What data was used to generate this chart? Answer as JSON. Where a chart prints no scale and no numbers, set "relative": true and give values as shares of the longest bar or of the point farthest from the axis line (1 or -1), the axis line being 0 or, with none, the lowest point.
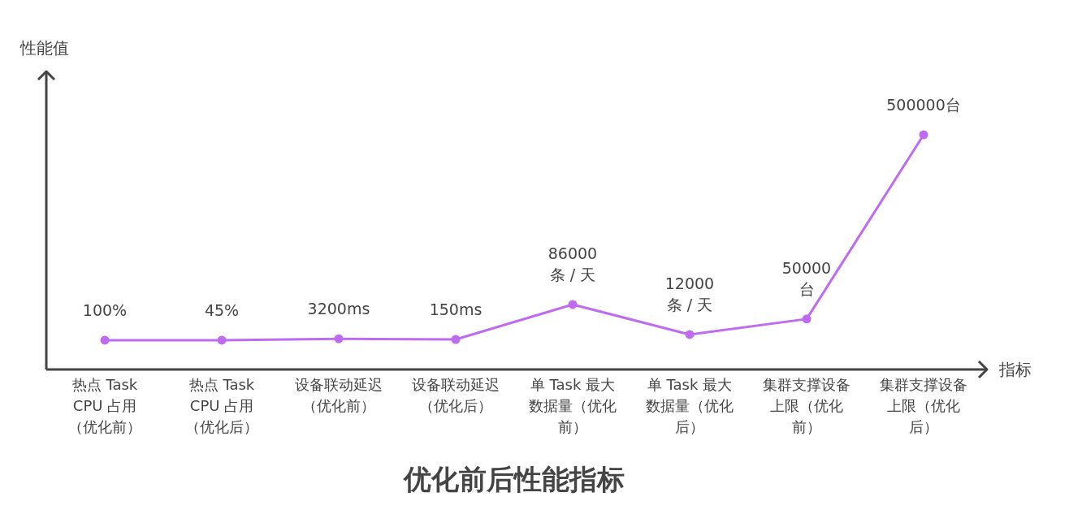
{
  "chart_data": {
    "type": "line",
    "title": "优化前后性能指标",
    "xlabel": "指标",
    "ylabel": "性能值",
    "relative": true,
    "marker": "circle",
    "color": "#bf6bf0",
    "categories": [
      "热点 Task CPU 占用（优化前）",
      "热点 Task CPU 占用（优化后）",
      "设备联动延迟（优化前）",
      "设备联动延迟（优化后）",
      "单 Task 最大数据量（优化前）",
      "单 Task 最大数据量（优化后）",
      "集群支撑设备上限（优化前）",
      "集群支撑设备上限（优化后）"
    ],
    "values": [
      0.125,
      0.125,
      0.131,
      0.128,
      0.277,
      0.149,
      0.215,
      1
    ],
    "annotations": [
      "100%",
      "45%",
      "3200ms",
      "150ms",
      "86000 条 / 天",
      "12000 条 / 天",
      "50000 台",
      "500000台"
    ]
  }
}
